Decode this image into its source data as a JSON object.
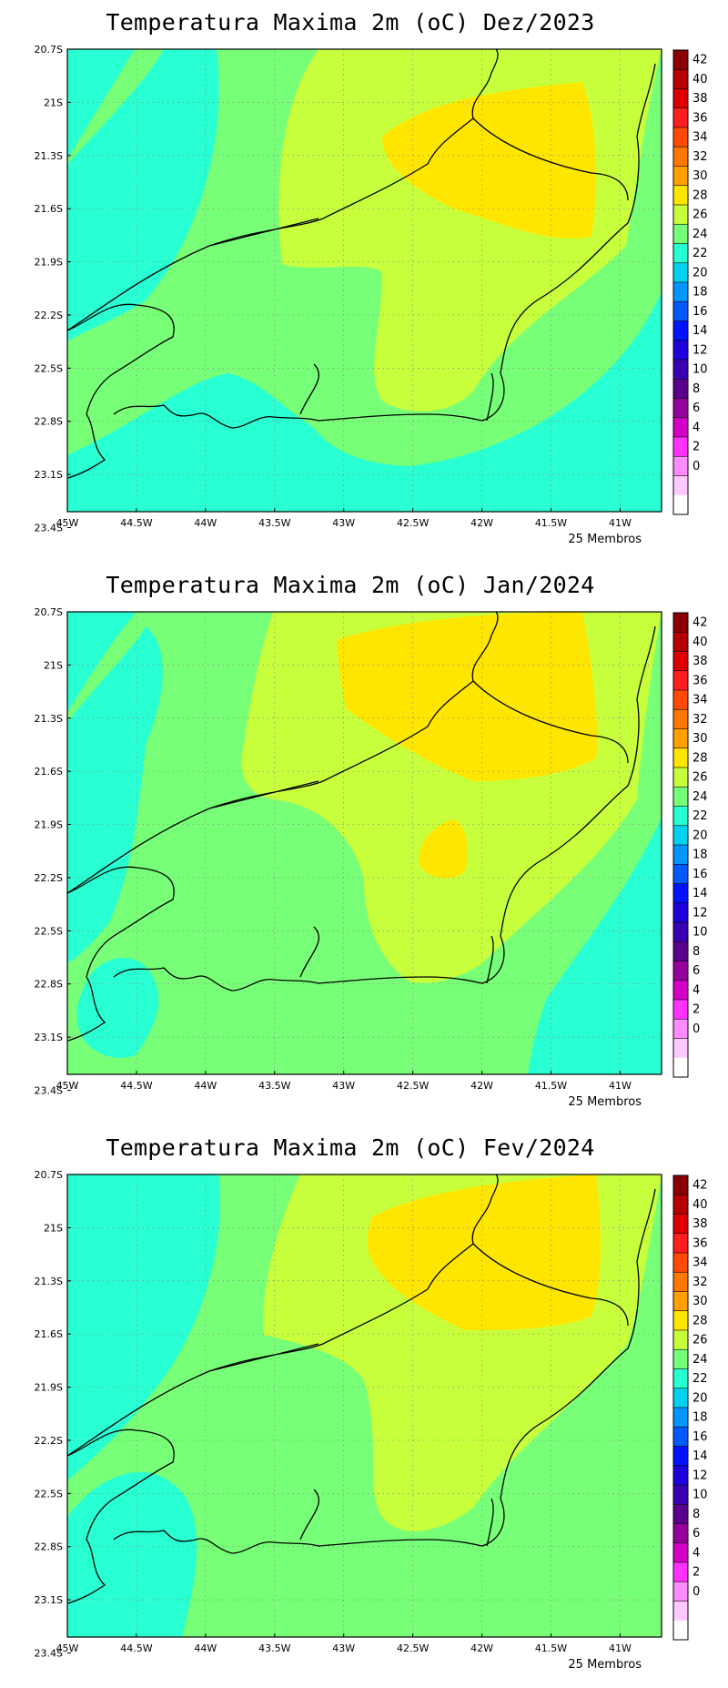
{
  "panels": [
    {
      "title": "Temperatura Maxima 2m (oC) Dez/2023",
      "members": "25 Membros",
      "variant": 0
    },
    {
      "title": "Temperatura Maxima 2m (oC) Jan/2024",
      "members": "25 Membros",
      "variant": 1
    },
    {
      "title": "Temperatura Maxima 2m (oC) Fev/2024",
      "members": "25 Membros",
      "variant": 2
    }
  ],
  "lat_labels": [
    "20.7S",
    "21S",
    "21.3S",
    "21.6S",
    "21.9S",
    "22.2S",
    "22.5S",
    "22.8S",
    "23.1S",
    "23.4S"
  ],
  "lon_labels": [
    "45W",
    "44.5W",
    "44W",
    "43.5W",
    "43W",
    "42.5W",
    "42W",
    "41.5W",
    "41W"
  ],
  "colorbar": {
    "labels": [
      "42",
      "40",
      "38",
      "36",
      "34",
      "32",
      "30",
      "28",
      "26",
      "24",
      "22",
      "20",
      "18",
      "16",
      "14",
      "12",
      "10",
      "8",
      "6",
      "4",
      "2",
      "0"
    ],
    "colors": [
      "#8b0000",
      "#b40000",
      "#dc0000",
      "#ff1e1e",
      "#ff4b00",
      "#ff7800",
      "#ffa000",
      "#ffe600",
      "#c8ff3c",
      "#78ff78",
      "#28ffd2",
      "#00d2f0",
      "#0096ff",
      "#005aff",
      "#0014ff",
      "#1e00dc",
      "#3c00b4",
      "#5a008c",
      "#96009b",
      "#d200c8",
      "#ff32ff",
      "#ff8cff",
      "#ffc8ff",
      "#ffffff"
    ]
  },
  "field_colors": {
    "t24_26": "#28ffd2",
    "t26_28": "#78ff78",
    "t28_30": "#c8ff3c",
    "t30_32": "#ffe600"
  }
}
